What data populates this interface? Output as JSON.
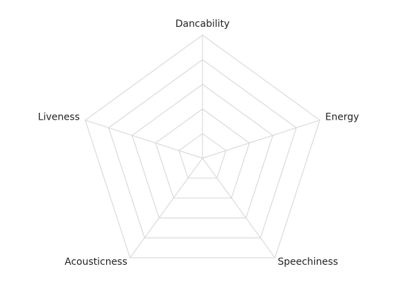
{
  "chart_data": {
    "type": "radar",
    "title": "",
    "axes": [
      "Dancability",
      "Energy",
      "Speechiness",
      "Acousticness",
      "Liveness"
    ],
    "rings": 5,
    "series": [],
    "grid": true,
    "grid_color": "#d9d9d9",
    "label_color": "#222222",
    "background": "#ffffff"
  }
}
